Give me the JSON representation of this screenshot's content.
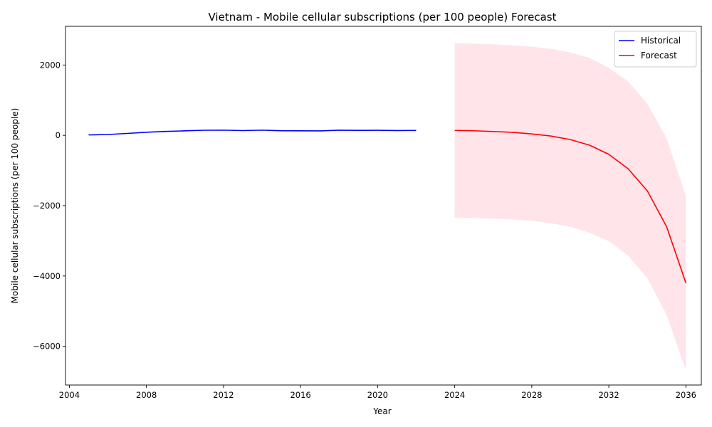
{
  "chart_data": {
    "type": "line",
    "title": "Vietnam - Mobile cellular subscriptions (per 100 people) Forecast",
    "xlabel": "Year",
    "ylabel": "Mobile cellular subscriptions (per 100 people)",
    "xlim": [
      2003.8,
      2036.8
    ],
    "ylim": [
      -7100,
      3100
    ],
    "xticks": [
      2004,
      2008,
      2012,
      2016,
      2020,
      2024,
      2028,
      2032,
      2036
    ],
    "yticks": [
      -6000,
      -4000,
      -2000,
      0,
      2000
    ],
    "legend_position": "top-right",
    "series": [
      {
        "name": "Historical",
        "color": "#0000ff",
        "x": [
          2005,
          2006,
          2007,
          2008,
          2009,
          2010,
          2011,
          2012,
          2013,
          2014,
          2015,
          2016,
          2017,
          2018,
          2019,
          2020,
          2021,
          2022
        ],
        "values": [
          12,
          24,
          54,
          88,
          112,
          128,
          145,
          148,
          135,
          148,
          131,
          129,
          127,
          147,
          142,
          143,
          137,
          140
        ]
      },
      {
        "name": "Forecast",
        "color": "#ff0000",
        "x": [
          2024,
          2025,
          2026,
          2027,
          2028,
          2029,
          2030,
          2031,
          2032,
          2033,
          2034,
          2035,
          2036
        ],
        "values": [
          140,
          130,
          110,
          85,
          40,
          -20,
          -120,
          -280,
          -540,
          -950,
          -1580,
          -2600,
          -4200
        ]
      }
    ],
    "confidence_band": {
      "color": "#ffe4ea",
      "x": [
        2024,
        2025,
        2026,
        2027,
        2028,
        2029,
        2030,
        2031,
        2032,
        2033,
        2034,
        2035,
        2036
      ],
      "upper": [
        2620,
        2610,
        2590,
        2560,
        2520,
        2460,
        2360,
        2200,
        1920,
        1530,
        900,
        -90,
        -1720
      ],
      "lower": [
        -2340,
        -2350,
        -2370,
        -2390,
        -2430,
        -2500,
        -2600,
        -2770,
        -3010,
        -3420,
        -4060,
        -5110,
        -6680
      ]
    }
  }
}
